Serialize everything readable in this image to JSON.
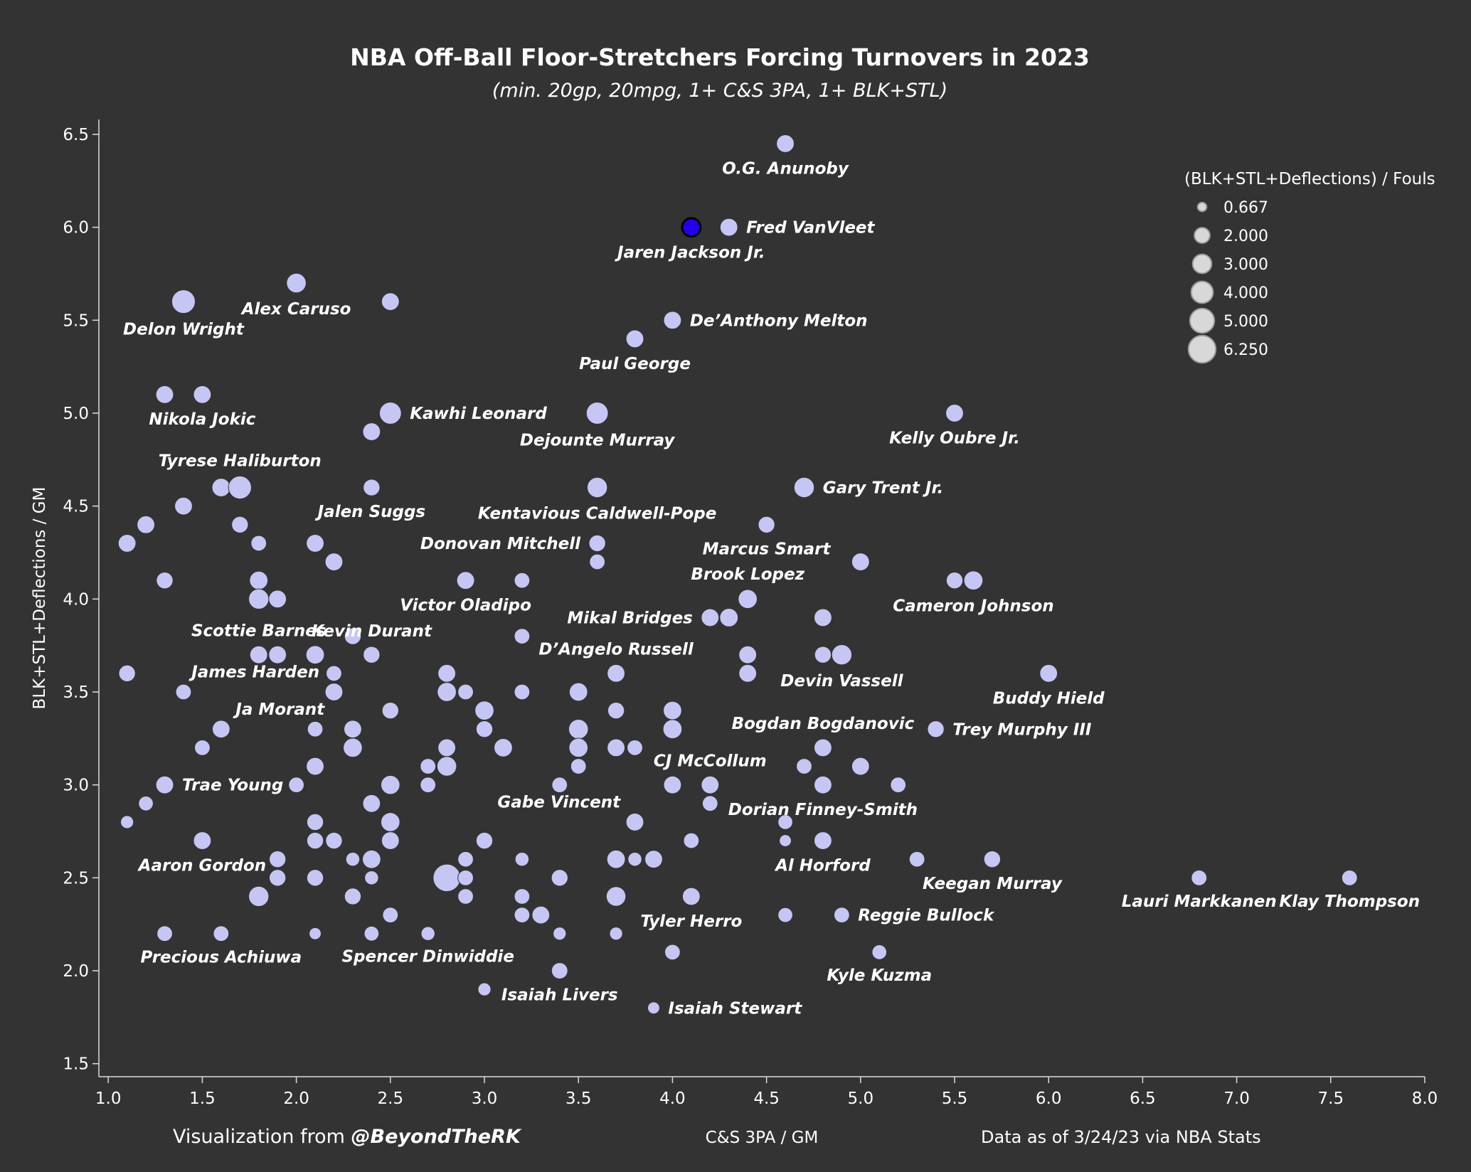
{
  "chart_data": {
    "type": "scatter",
    "title": "NBA Off-Ball Floor-Stretchers Forcing Turnovers in 2023",
    "subtitle": "(min. 20gp, 20mpg, 1+ C&S 3PA, 1+ BLK+STL)",
    "xlabel": "C&S 3PA / GM",
    "ylabel": "BLK+STL+Deflections / GM",
    "xlim": [
      0.95,
      8.0
    ],
    "ylim": [
      1.43,
      6.58
    ],
    "xticks": [
      1.0,
      1.5,
      2.0,
      2.5,
      3.0,
      3.5,
      4.0,
      4.5,
      5.0,
      5.5,
      6.0,
      6.5,
      7.0,
      7.5,
      8.0
    ],
    "yticks": [
      1.5,
      2.0,
      2.5,
      3.0,
      3.5,
      4.0,
      4.5,
      5.0,
      5.5,
      6.0,
      6.5
    ],
    "tick_labels_x": [
      "1.0",
      "1.5",
      "2.0",
      "2.5",
      "3.0",
      "3.5",
      "4.0",
      "4.5",
      "5.0",
      "5.5",
      "6.0",
      "6.5",
      "7.0",
      "7.5",
      "8.0"
    ],
    "tick_labels_y": [
      "1.5",
      "2.0",
      "2.5",
      "3.0",
      "3.5",
      "4.0",
      "4.5",
      "5.0",
      "5.5",
      "6.0",
      "6.5"
    ],
    "size_legend": {
      "title": "(BLK+STL+Deflections) / Fouls",
      "entries": [
        "0.667",
        "2.000",
        "3.000",
        "4.000",
        "5.000",
        "6.250"
      ],
      "values": [
        0.667,
        2.0,
        3.0,
        4.0,
        5.0,
        6.25
      ]
    },
    "colors": {
      "point": "#c6c6f5",
      "highlight": "#2200ee",
      "background": "#333333"
    },
    "highlight_name": "Jaren Jackson Jr.",
    "labeled_points": [
      {
        "name": "O.G. Anunoby",
        "x": 4.6,
        "y": 6.45,
        "r": 2.6,
        "pos": "below"
      },
      {
        "name": "Fred VanVleet",
        "x": 4.3,
        "y": 6.0,
        "r": 2.6,
        "pos": "right"
      },
      {
        "name": "Jaren Jackson Jr.",
        "x": 4.1,
        "y": 6.0,
        "r": 2.8,
        "pos": "below"
      },
      {
        "name": "Alex Caruso",
        "x": 2.0,
        "y": 5.7,
        "r": 3.2,
        "pos": "below"
      },
      {
        "name": "Delon Wright",
        "x": 1.4,
        "y": 5.6,
        "r": 4.6,
        "pos": "below"
      },
      {
        "name": "De’Anthony Melton",
        "x": 4.0,
        "y": 5.5,
        "r": 2.6,
        "pos": "right"
      },
      {
        "name": "Paul George",
        "x": 3.8,
        "y": 5.4,
        "r": 2.6,
        "pos": "below"
      },
      {
        "name": "Nikola Jokic",
        "x": 1.5,
        "y": 5.1,
        "r": 2.6,
        "pos": "below"
      },
      {
        "name": "Kawhi Leonard",
        "x": 2.5,
        "y": 5.0,
        "r": 4.0,
        "pos": "right"
      },
      {
        "name": "Dejounte Murray",
        "x": 3.6,
        "y": 5.0,
        "r": 4.0,
        "pos": "below"
      },
      {
        "name": "Kelly Oubre Jr.",
        "x": 5.5,
        "y": 5.0,
        "r": 2.6,
        "pos": "below"
      },
      {
        "name": "Tyrese Haliburton",
        "x": 1.7,
        "y": 4.6,
        "r": 4.4,
        "pos": "above"
      },
      {
        "name": "Gary Trent Jr.",
        "x": 4.7,
        "y": 4.6,
        "r": 3.4,
        "pos": "right"
      },
      {
        "name": "Kentavious Caldwell-Pope",
        "x": 3.6,
        "y": 4.6,
        "r": 3.4,
        "pos": "below"
      },
      {
        "name": "Jalen Suggs",
        "x": 2.4,
        "y": 4.6,
        "r": 2.3,
        "pos": "below"
      },
      {
        "name": "Marcus Smart",
        "x": 4.5,
        "y": 4.4,
        "r": 2.3,
        "pos": "below"
      },
      {
        "name": "Donovan Mitchell",
        "x": 3.6,
        "y": 4.3,
        "r": 2.3,
        "pos": "left"
      },
      {
        "name": "Brook Lopez",
        "x": 4.4,
        "y": 4.0,
        "r": 3.0,
        "pos": "above"
      },
      {
        "name": "Cameron Johnson",
        "x": 5.6,
        "y": 4.1,
        "r": 3.0,
        "pos": "below"
      },
      {
        "name": "Victor Oladipo",
        "x": 2.9,
        "y": 4.1,
        "r": 2.6,
        "pos": "below"
      },
      {
        "name": "Mikal Bridges",
        "x": 4.2,
        "y": 3.9,
        "r": 2.6,
        "pos": "left"
      },
      {
        "name": "Scottie Barnes",
        "x": 1.8,
        "y": 3.7,
        "r": 2.6,
        "pos": "above"
      },
      {
        "name": "Kevin Durant",
        "x": 2.4,
        "y": 3.7,
        "r": 2.3,
        "pos": "above"
      },
      {
        "name": "D’Angelo Russell",
        "x": 3.7,
        "y": 3.6,
        "r": 2.6,
        "pos": "above"
      },
      {
        "name": "Devin Vassell",
        "x": 4.9,
        "y": 3.7,
        "r": 3.4,
        "pos": "below"
      },
      {
        "name": "Buddy Hield",
        "x": 6.0,
        "y": 3.6,
        "r": 2.6,
        "pos": "below"
      },
      {
        "name": "James Harden",
        "x": 2.2,
        "y": 3.5,
        "r": 2.6,
        "pos": "upleft"
      },
      {
        "name": "Ja Morant",
        "x": 1.6,
        "y": 3.3,
        "r": 2.6,
        "pos": "upright"
      },
      {
        "name": "Bogdan Bogdanovic",
        "x": 4.8,
        "y": 3.2,
        "r": 2.6,
        "pos": "above"
      },
      {
        "name": "Trey Murphy III",
        "x": 5.4,
        "y": 3.3,
        "r": 2.3,
        "pos": "right"
      },
      {
        "name": "CJ McCollum",
        "x": 4.2,
        "y": 3.0,
        "r": 2.6,
        "pos": "above"
      },
      {
        "name": "Trae Young",
        "x": 1.3,
        "y": 3.0,
        "r": 2.6,
        "pos": "right"
      },
      {
        "name": "Gabe Vincent",
        "x": 3.8,
        "y": 2.8,
        "r": 2.6,
        "pos": "upleft"
      },
      {
        "name": "Dorian Finney-Smith",
        "x": 4.8,
        "y": 3.0,
        "r": 2.6,
        "pos": "below"
      },
      {
        "name": "Aaron Gordon",
        "x": 1.5,
        "y": 2.7,
        "r": 2.6,
        "pos": "below"
      },
      {
        "name": "Al Horford",
        "x": 4.8,
        "y": 2.7,
        "r": 2.6,
        "pos": "below"
      },
      {
        "name": "Keegan Murray",
        "x": 5.7,
        "y": 2.6,
        "r": 2.3,
        "pos": "below"
      },
      {
        "name": "Lauri Markkanen",
        "x": 6.8,
        "y": 2.5,
        "r": 2.0,
        "pos": "below"
      },
      {
        "name": "Klay Thompson",
        "x": 7.6,
        "y": 2.5,
        "r": 2.0,
        "pos": "below"
      },
      {
        "name": "Tyler Herro",
        "x": 4.1,
        "y": 2.4,
        "r": 2.6,
        "pos": "below"
      },
      {
        "name": "Reggie Bullock",
        "x": 4.9,
        "y": 2.3,
        "r": 2.0,
        "pos": "right"
      },
      {
        "name": "Precious Achiuwa",
        "x": 1.6,
        "y": 2.2,
        "r": 2.0,
        "pos": "below"
      },
      {
        "name": "Spencer Dinwiddie",
        "x": 2.7,
        "y": 2.2,
        "r": 1.6,
        "pos": "below"
      },
      {
        "name": "Kyle Kuzma",
        "x": 5.1,
        "y": 2.1,
        "r": 1.8,
        "pos": "below"
      },
      {
        "name": "Isaiah Livers",
        "x": 3.4,
        "y": 2.0,
        "r": 2.2,
        "pos": "below"
      },
      {
        "name": "Isaiah Stewart",
        "x": 3.9,
        "y": 1.8,
        "r": 1.2,
        "pos": "right"
      }
    ],
    "other_points": [
      [
        1.3,
        5.1,
        2.6
      ],
      [
        1.2,
        4.4,
        2.6
      ],
      [
        1.1,
        4.3,
        2.6
      ],
      [
        1.4,
        4.5,
        2.6
      ],
      [
        1.6,
        4.6,
        2.8
      ],
      [
        1.7,
        4.4,
        2.3
      ],
      [
        1.8,
        4.3,
        2.0
      ],
      [
        1.3,
        4.1,
        2.3
      ],
      [
        1.8,
        4.1,
        2.8
      ],
      [
        1.8,
        4.0,
        3.4
      ],
      [
        1.9,
        4.0,
        2.6
      ],
      [
        2.5,
        5.6,
        2.6
      ],
      [
        2.4,
        4.9,
        2.6
      ],
      [
        2.1,
        4.3,
        2.6
      ],
      [
        2.2,
        4.2,
        2.6
      ],
      [
        2.3,
        3.8,
        2.3
      ],
      [
        1.9,
        3.7,
        2.6
      ],
      [
        2.1,
        3.7,
        2.8
      ],
      [
        2.2,
        3.6,
        2.0
      ],
      [
        2.2,
        3.5,
        2.8
      ],
      [
        1.4,
        3.5,
        2.0
      ],
      [
        1.1,
        3.6,
        2.3
      ],
      [
        2.1,
        3.3,
        2.0
      ],
      [
        2.3,
        3.3,
        2.6
      ],
      [
        2.5,
        3.4,
        2.3
      ],
      [
        1.5,
        3.2,
        2.0
      ],
      [
        2.3,
        3.2,
        3.0
      ],
      [
        2.1,
        3.1,
        2.6
      ],
      [
        2.0,
        3.0,
        2.0
      ],
      [
        2.5,
        3.0,
        3.0
      ],
      [
        2.4,
        2.9,
        2.6
      ],
      [
        1.2,
        2.9,
        1.8
      ],
      [
        1.1,
        2.8,
        1.4
      ],
      [
        2.1,
        2.8,
        2.3
      ],
      [
        2.5,
        2.8,
        3.0
      ],
      [
        2.1,
        2.7,
        2.3
      ],
      [
        2.2,
        2.7,
        2.3
      ],
      [
        2.5,
        2.7,
        2.6
      ],
      [
        1.9,
        2.6,
        2.3
      ],
      [
        2.3,
        2.6,
        1.6
      ],
      [
        2.4,
        2.6,
        2.8
      ],
      [
        1.9,
        2.5,
        2.3
      ],
      [
        2.1,
        2.5,
        2.3
      ],
      [
        2.4,
        2.5,
        1.6
      ],
      [
        1.8,
        2.4,
        3.4
      ],
      [
        2.3,
        2.4,
        2.3
      ],
      [
        2.5,
        2.3,
        2.0
      ],
      [
        1.3,
        2.2,
        2.0
      ],
      [
        2.1,
        2.2,
        1.2
      ],
      [
        2.4,
        2.2,
        1.8
      ],
      [
        2.8,
        3.6,
        2.6
      ],
      [
        2.8,
        3.5,
        3.0
      ],
      [
        2.9,
        3.5,
        2.0
      ],
      [
        3.0,
        3.4,
        3.0
      ],
      [
        3.2,
        3.5,
        2.0
      ],
      [
        3.0,
        3.3,
        2.3
      ],
      [
        2.8,
        3.2,
        2.6
      ],
      [
        2.7,
        3.1,
        2.0
      ],
      [
        2.8,
        3.1,
        3.2
      ],
      [
        3.1,
        3.2,
        2.8
      ],
      [
        2.7,
        3.0,
        2.0
      ],
      [
        3.2,
        4.1,
        2.0
      ],
      [
        3.2,
        3.8,
        2.0
      ],
      [
        3.6,
        4.2,
        2.0
      ],
      [
        3.5,
        3.5,
        2.8
      ],
      [
        3.5,
        3.3,
        3.2
      ],
      [
        3.5,
        3.2,
        3.0
      ],
      [
        3.5,
        3.1,
        2.0
      ],
      [
        3.7,
        3.4,
        2.3
      ],
      [
        3.7,
        3.2,
        2.6
      ],
      [
        3.8,
        3.2,
        2.0
      ],
      [
        3.4,
        3.0,
        2.0
      ],
      [
        4.0,
        3.4,
        2.8
      ],
      [
        4.0,
        3.3,
        3.0
      ],
      [
        4.0,
        3.0,
        2.6
      ],
      [
        4.2,
        2.9,
        2.0
      ],
      [
        4.4,
        3.7,
        2.6
      ],
      [
        4.4,
        3.6,
        2.6
      ],
      [
        4.8,
        3.9,
        2.6
      ],
      [
        4.8,
        3.7,
        2.3
      ],
      [
        5.0,
        4.2,
        2.6
      ],
      [
        5.5,
        4.1,
        2.3
      ],
      [
        4.3,
        3.9,
        2.8
      ],
      [
        3.0,
        2.7,
        2.3
      ],
      [
        2.9,
        2.6,
        2.0
      ],
      [
        2.8,
        2.5,
        6.25
      ],
      [
        2.9,
        2.5,
        2.0
      ],
      [
        2.9,
        2.4,
        2.0
      ],
      [
        3.2,
        2.6,
        1.6
      ],
      [
        3.2,
        2.4,
        2.0
      ],
      [
        3.2,
        2.3,
        2.0
      ],
      [
        3.3,
        2.3,
        2.6
      ],
      [
        3.4,
        2.5,
        2.3
      ],
      [
        3.4,
        2.2,
        1.4
      ],
      [
        3.7,
        2.6,
        2.8
      ],
      [
        3.8,
        2.6,
        1.6
      ],
      [
        3.9,
        2.6,
        2.6
      ],
      [
        3.7,
        2.4,
        3.2
      ],
      [
        3.7,
        2.2,
        1.4
      ],
      [
        4.0,
        2.1,
        2.0
      ],
      [
        4.1,
        2.7,
        2.0
      ],
      [
        4.6,
        2.8,
        1.8
      ],
      [
        4.6,
        2.7,
        1.2
      ],
      [
        4.6,
        2.3,
        1.8
      ],
      [
        4.7,
        3.1,
        2.0
      ],
      [
        4.8,
        3.0,
        2.6
      ],
      [
        5.0,
        3.1,
        2.6
      ],
      [
        5.2,
        3.0,
        2.0
      ],
      [
        5.3,
        2.6,
        2.0
      ],
      [
        3.0,
        1.9,
        1.4
      ]
    ]
  },
  "footer": {
    "credit_prefix": "Visualization from ",
    "credit_handle": "@BeyondTheRK",
    "source": "Data as of 3/24/23 via NBA Stats"
  }
}
